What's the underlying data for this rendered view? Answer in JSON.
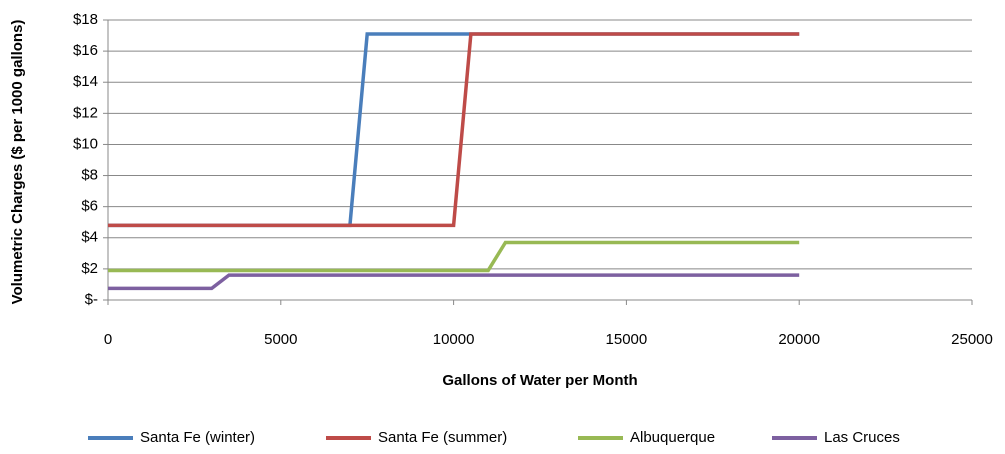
{
  "chart_data": {
    "type": "line",
    "x_label": "Gallons of Water per Month",
    "y_label": "Volumetric Charges ($ per 1000 gallons)",
    "xlim": [
      0,
      25000
    ],
    "xticks": [
      0,
      5000,
      10000,
      15000,
      20000,
      25000
    ],
    "ylim": [
      0,
      18
    ],
    "yticks": [
      {
        "value": 0,
        "label": "$-"
      },
      {
        "value": 2,
        "label": "$2"
      },
      {
        "value": 4,
        "label": "$4"
      },
      {
        "value": 6,
        "label": "$6"
      },
      {
        "value": 8,
        "label": "$8"
      },
      {
        "value": 10,
        "label": "$10"
      },
      {
        "value": 12,
        "label": "$12"
      },
      {
        "value": 14,
        "label": "$14"
      },
      {
        "value": 16,
        "label": "$16"
      },
      {
        "value": 18,
        "label": "$18"
      }
    ],
    "grid": true,
    "legend": "bottom",
    "series": [
      {
        "name": "Santa Fe (winter)",
        "color": "#4a7ebb",
        "x": [
          0,
          7000,
          7500,
          20000
        ],
        "values": [
          4.8,
          4.8,
          17.1,
          17.1
        ]
      },
      {
        "name": "Santa Fe (summer)",
        "color": "#be4b48",
        "x": [
          0,
          10000,
          10500,
          20000
        ],
        "values": [
          4.8,
          4.8,
          17.1,
          17.1
        ]
      },
      {
        "name": "Albuquerque",
        "color": "#98b954",
        "x": [
          0,
          11000,
          11500,
          20000
        ],
        "values": [
          1.9,
          1.9,
          3.7,
          3.7
        ]
      },
      {
        "name": "Las Cruces",
        "color": "#7d60a0",
        "x": [
          0,
          3000,
          3500,
          20000
        ],
        "values": [
          0.75,
          0.75,
          1.6,
          1.6
        ]
      }
    ]
  }
}
